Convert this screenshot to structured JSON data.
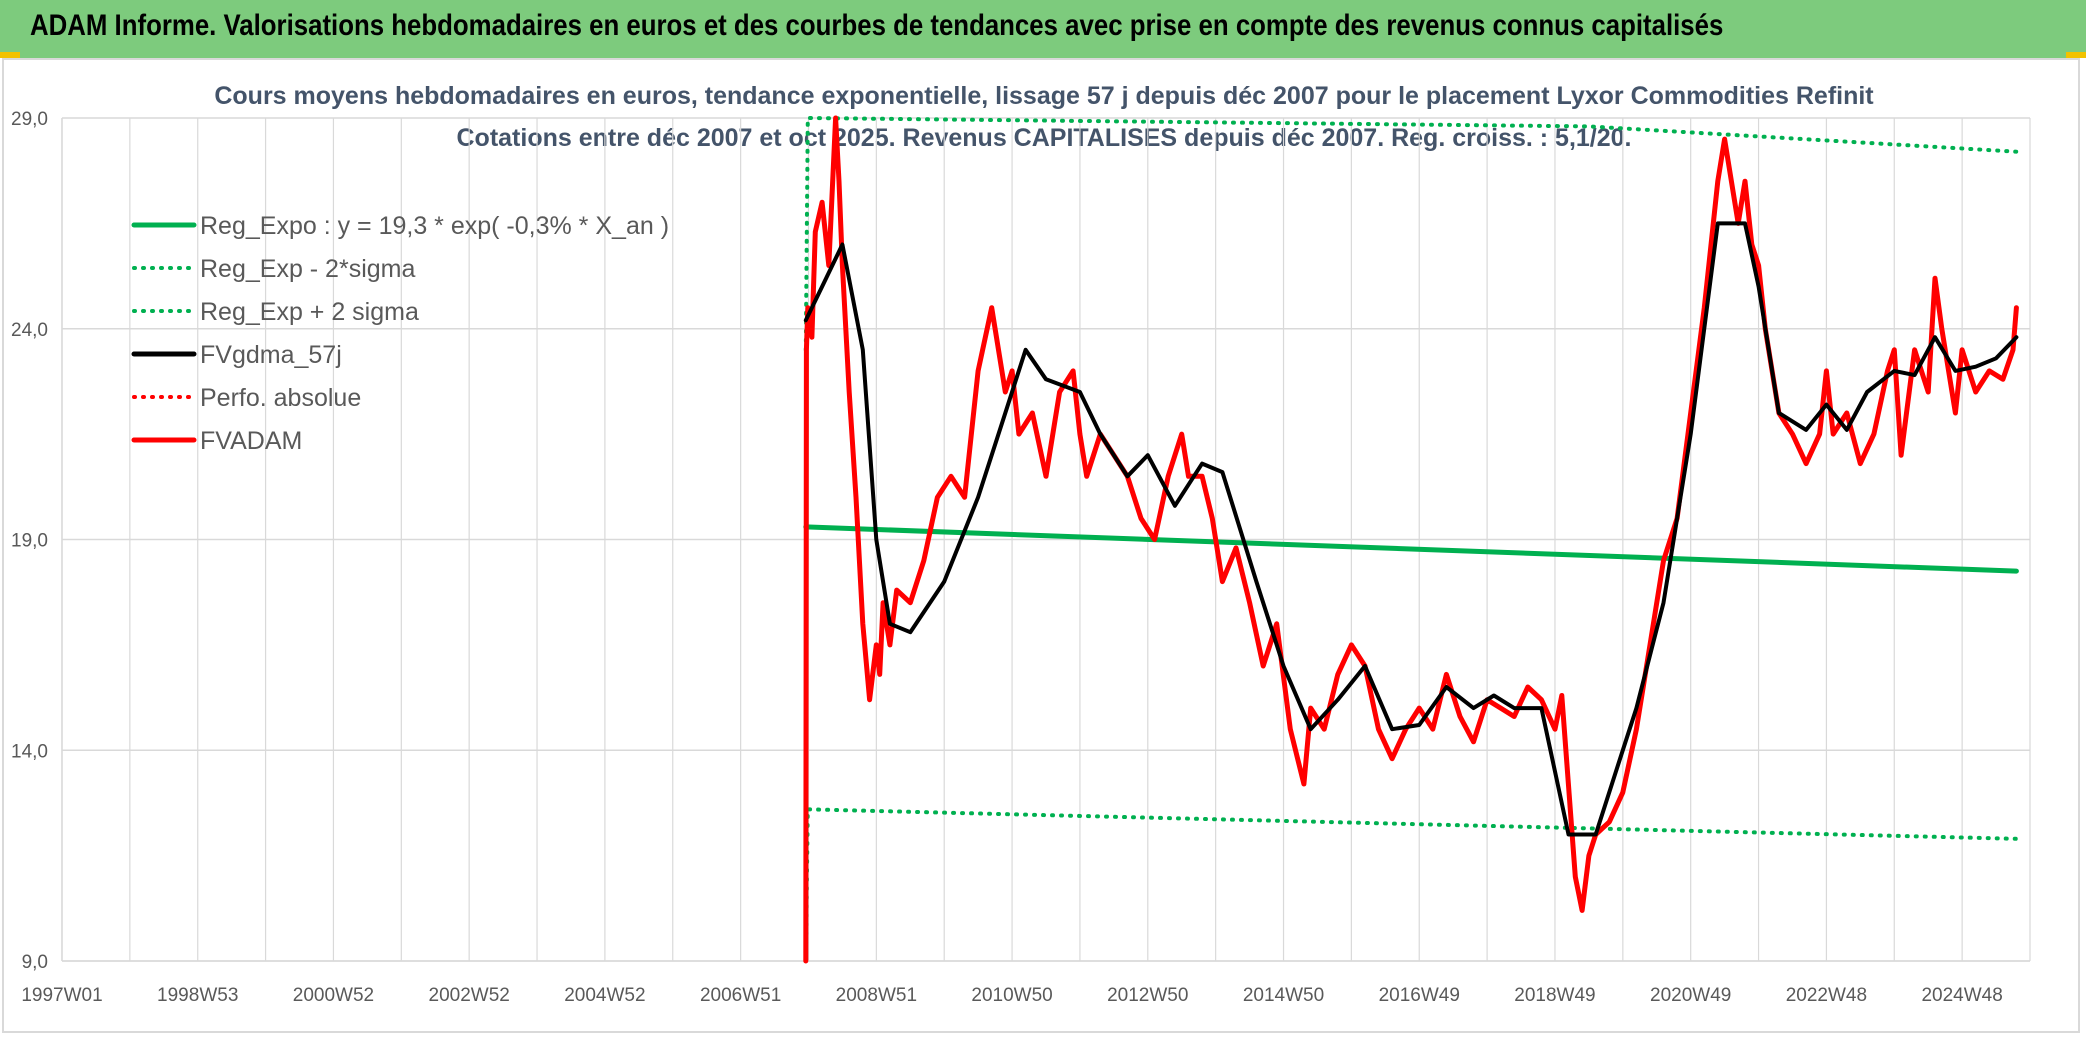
{
  "banner": {
    "title": "ADAM Informe. Valorisations hebdomadaires en euros et des courbes de tendances avec prise en compte des revenus connus capitalisés"
  },
  "colors": {
    "banner_bg": "#7dcb7d",
    "green": "#00b050",
    "red": "#ff0000",
    "black": "#000000",
    "grid": "#d9d9d9",
    "title": "#44546a"
  },
  "chart_data": {
    "type": "line",
    "title_line1": "Cours moyens hebdomadaires en euros, tendance exponentielle, lissage 57 j depuis déc 2007 pour le placement Lyxor Commodities Refinit",
    "title_line2": "Cotations entre déc 2007 et oct 2025. Revenus CAPITALISES depuis déc 2007. Reg. croiss. : 5,1/20.",
    "xlabel": "",
    "ylabel": "",
    "x_range": [
      1997.0,
      2026.0
    ],
    "ylim": [
      9.0,
      29.0
    ],
    "y_ticks": [
      "29,0",
      "24,0",
      "19,0",
      "14,0",
      "9,0"
    ],
    "x_tick_labels": [
      "1997W01",
      "1998W53",
      "2000W52",
      "2002W52",
      "2004W52",
      "2006W51",
      "2008W51",
      "2010W50",
      "2012W50",
      "2014W50",
      "2016W49",
      "2018W49",
      "2020W49",
      "2022W48",
      "2024W48"
    ],
    "grid": true,
    "legend_position": "top-left",
    "legend": [
      {
        "label": "Reg_Expo : y = 19,3 * exp( -0,3% *  X_an )",
        "color": "#00b050",
        "style": "solid"
      },
      {
        "label": "Reg_Exp - 2*sigma",
        "color": "#00b050",
        "style": "dotted"
      },
      {
        "label": "Reg_Exp + 2 sigma",
        "color": "#00b050",
        "style": "dotted"
      },
      {
        "label": "FVgdma_57j",
        "color": "#000000",
        "style": "solid"
      },
      {
        "label": "Perfo. absolue",
        "color": "#ff0000",
        "style": "dotted"
      },
      {
        "label": "FVADAM",
        "color": "#ff0000",
        "style": "solid"
      }
    ],
    "series": [
      {
        "name": "Reg_Expo : y = 19,3 * exp( -0,3% *  X_an )",
        "color": "#00b050",
        "style": "solid",
        "x": [
          2007.96,
          2025.8
        ],
        "y": [
          19.3,
          18.25
        ]
      },
      {
        "name": "Reg_Exp - 2*sigma",
        "color": "#00b050",
        "style": "dotted",
        "x": [
          2007.96,
          2007.99,
          2025.8
        ],
        "y": [
          9.0,
          12.6,
          11.9
        ]
      },
      {
        "name": "Reg_Exp + 2 sigma",
        "color": "#00b050",
        "style": "dotted",
        "x": [
          2007.96,
          2007.99,
          2019.5,
          2025.8
        ],
        "y": [
          23.5,
          29.0,
          28.8,
          28.2
        ]
      },
      {
        "name": "FVgdma_57j",
        "color": "#000000",
        "style": "solid",
        "x": [
          2007.96,
          2008.2,
          2008.5,
          2008.8,
          2009.0,
          2009.2,
          2009.5,
          2010.0,
          2010.5,
          2010.9,
          2011.2,
          2011.5,
          2012.0,
          2012.3,
          2012.7,
          2013.0,
          2013.4,
          2013.8,
          2014.1,
          2014.6,
          2015.0,
          2015.4,
          2015.8,
          2016.2,
          2016.6,
          2017.0,
          2017.4,
          2017.8,
          2018.1,
          2018.4,
          2018.8,
          2019.2,
          2019.6,
          2019.9,
          2020.2,
          2020.6,
          2021.0,
          2021.4,
          2021.8,
          2022.0,
          2022.3,
          2022.7,
          2023.0,
          2023.3,
          2023.6,
          2024.0,
          2024.3,
          2024.6,
          2024.9,
          2025.2,
          2025.5,
          2025.8
        ],
        "y": [
          24.2,
          25.0,
          26.0,
          23.5,
          19.0,
          17.0,
          16.8,
          18.0,
          20.0,
          22.0,
          23.5,
          22.8,
          22.5,
          21.5,
          20.5,
          21.0,
          19.8,
          20.8,
          20.6,
          18.0,
          16.0,
          14.5,
          15.2,
          16.0,
          14.5,
          14.6,
          15.5,
          15.0,
          15.3,
          15.0,
          15.0,
          12.0,
          12.0,
          13.5,
          15.0,
          17.5,
          21.5,
          26.5,
          26.5,
          25.0,
          22.0,
          21.6,
          22.2,
          21.6,
          22.5,
          23.0,
          22.9,
          23.8,
          23.0,
          23.1,
          23.3,
          23.8
        ]
      },
      {
        "name": "FVADAM",
        "color": "#ff0000",
        "style": "solid",
        "x": [
          2007.96,
          2007.97,
          2007.99,
          2008.05,
          2008.1,
          2008.2,
          2008.3,
          2008.4,
          2008.45,
          2008.5,
          2008.6,
          2008.7,
          2008.8,
          2008.9,
          2009.0,
          2009.05,
          2009.1,
          2009.2,
          2009.3,
          2009.5,
          2009.7,
          2009.9,
          2010.1,
          2010.3,
          2010.5,
          2010.7,
          2010.9,
          2011.0,
          2011.1,
          2011.3,
          2011.5,
          2011.7,
          2011.9,
          2012.0,
          2012.1,
          2012.3,
          2012.5,
          2012.7,
          2012.9,
          2013.1,
          2013.3,
          2013.5,
          2013.6,
          2013.8,
          2013.95,
          2014.1,
          2014.3,
          2014.5,
          2014.7,
          2014.9,
          2015.1,
          2015.3,
          2015.4,
          2015.6,
          2015.8,
          2016.0,
          2016.2,
          2016.4,
          2016.6,
          2016.8,
          2017.0,
          2017.2,
          2017.4,
          2017.6,
          2017.8,
          2018.0,
          2018.2,
          2018.4,
          2018.6,
          2018.8,
          2019.0,
          2019.1,
          2019.3,
          2019.4,
          2019.5,
          2019.6,
          2019.8,
          2020.0,
          2020.2,
          2020.4,
          2020.6,
          2020.8,
          2021.0,
          2021.2,
          2021.4,
          2021.5,
          2021.7,
          2021.8,
          2021.9,
          2022.0,
          2022.1,
          2022.3,
          2022.5,
          2022.7,
          2022.9,
          2023.0,
          2023.1,
          2023.3,
          2023.5,
          2023.7,
          2023.9,
          2024.0,
          2024.1,
          2024.3,
          2024.5,
          2024.6,
          2024.7,
          2024.9,
          2025.0,
          2025.2,
          2025.4,
          2025.6,
          2025.75,
          2025.8
        ],
        "y": [
          9.0,
          23.5,
          24.5,
          23.8,
          26.3,
          27.0,
          25.5,
          29.0,
          27.5,
          25.5,
          22.5,
          20.0,
          17.0,
          15.2,
          16.5,
          15.8,
          17.5,
          16.5,
          17.8,
          17.5,
          18.5,
          20.0,
          20.5,
          20.0,
          23.0,
          24.5,
          22.5,
          23.0,
          21.5,
          22.0,
          20.5,
          22.5,
          23.0,
          21.5,
          20.5,
          21.5,
          21.0,
          20.5,
          19.5,
          19.0,
          20.5,
          21.5,
          20.5,
          20.5,
          19.5,
          18.0,
          18.8,
          17.5,
          16.0,
          17.0,
          14.5,
          13.2,
          15.0,
          14.5,
          15.8,
          16.5,
          16.0,
          14.5,
          13.8,
          14.5,
          15.0,
          14.5,
          15.8,
          14.8,
          14.2,
          15.2,
          15.0,
          14.8,
          15.5,
          15.2,
          14.5,
          15.3,
          11.0,
          10.2,
          11.5,
          12.0,
          12.3,
          13.0,
          14.5,
          16.5,
          18.5,
          19.5,
          22.0,
          24.5,
          27.5,
          28.5,
          26.5,
          27.5,
          26.0,
          25.5,
          24.0,
          22.0,
          21.5,
          20.8,
          21.5,
          23.0,
          21.5,
          22.0,
          20.8,
          21.5,
          23.0,
          23.5,
          21.0,
          23.5,
          22.5,
          25.2,
          24.0,
          22.0,
          23.5,
          22.5,
          23.0,
          22.8,
          23.5,
          24.5
        ]
      }
    ]
  }
}
